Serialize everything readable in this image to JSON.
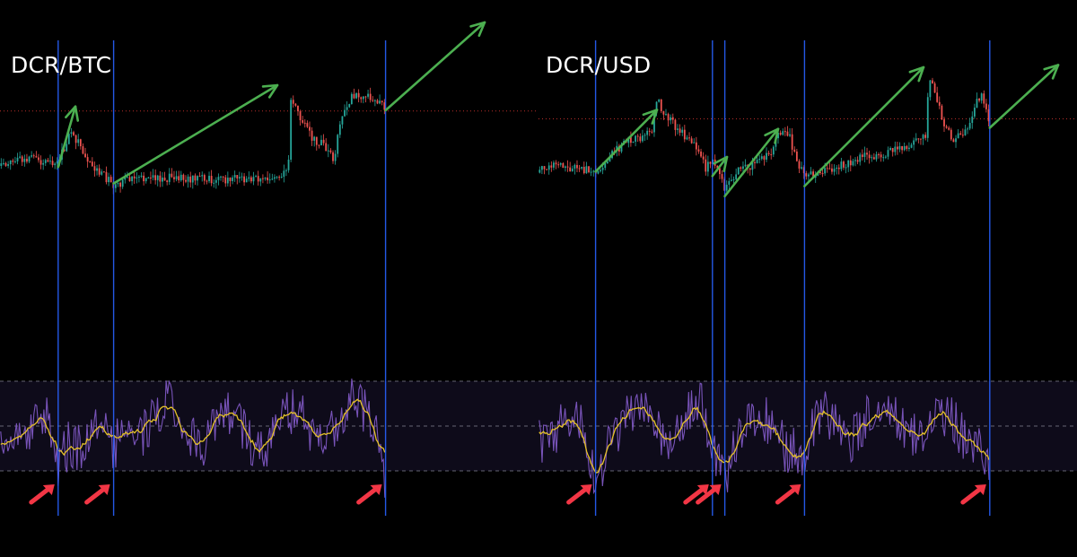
{
  "colors": {
    "background": "#000000",
    "candle_up": "#26a69a",
    "candle_down": "#ef5350",
    "vertical_marker": "#2962ff",
    "trend_arrow": "#4caf50",
    "signal_arrow": "#f23645",
    "oscillator_line": "#7e57c2",
    "oscillator_signal": "#e6c229",
    "oscillator_band": "#1a1430",
    "price_level": "#e53935"
  },
  "chart_data": [
    {
      "type": "candlestick_with_oscillator",
      "title": "DCR/BTC",
      "xlabel": "",
      "ylabel": "",
      "grid": false,
      "vertical_markers_x": [
        0.108,
        0.211,
        0.716
      ],
      "price_path": [
        [
          0.0,
          0.36
        ],
        [
          0.03,
          0.34
        ],
        [
          0.06,
          0.33
        ],
        [
          0.09,
          0.355
        ],
        [
          0.108,
          0.345
        ],
        [
          0.13,
          0.22
        ],
        [
          0.15,
          0.27
        ],
        [
          0.17,
          0.36
        ],
        [
          0.2,
          0.42
        ],
        [
          0.211,
          0.445
        ],
        [
          0.23,
          0.43
        ],
        [
          0.26,
          0.42
        ],
        [
          0.3,
          0.41
        ],
        [
          0.35,
          0.42
        ],
        [
          0.4,
          0.42
        ],
        [
          0.45,
          0.415
        ],
        [
          0.5,
          0.41
        ],
        [
          0.52,
          0.4
        ],
        [
          0.535,
          0.39
        ],
        [
          0.54,
          0.06
        ],
        [
          0.56,
          0.15
        ],
        [
          0.58,
          0.24
        ],
        [
          0.6,
          0.26
        ],
        [
          0.62,
          0.33
        ],
        [
          0.63,
          0.18
        ],
        [
          0.65,
          0.06
        ],
        [
          0.67,
          0.05
        ],
        [
          0.68,
          0.04
        ],
        [
          0.7,
          0.07
        ],
        [
          0.716,
          0.11
        ]
      ],
      "price_level": 0.115,
      "oscillator_band": [
        0.25,
        0.75
      ],
      "oscillator_midline": 0.5,
      "trend_arrows": [
        {
          "from": [
            0.108,
            0.365
          ],
          "to": [
            0.14,
            0.095
          ]
        },
        {
          "from": [
            0.211,
            0.438
          ],
          "to": [
            0.515,
            0.0
          ]
        },
        {
          "from": [
            0.716,
            0.112
          ],
          "to": [
            0.9,
            -0.28
          ]
        }
      ],
      "signal_arrows_x": [
        0.108,
        0.211,
        0.716
      ]
    },
    {
      "type": "candlestick_with_oscillator",
      "title": "DCR/USD",
      "xlabel": "",
      "ylabel": "",
      "grid": false,
      "vertical_markers_x": [
        0.106,
        0.323,
        0.346,
        0.494,
        0.838
      ],
      "price_path": [
        [
          0.0,
          0.39
        ],
        [
          0.03,
          0.34
        ],
        [
          0.06,
          0.37
        ],
        [
          0.09,
          0.38
        ],
        [
          0.106,
          0.4
        ],
        [
          0.13,
          0.33
        ],
        [
          0.16,
          0.25
        ],
        [
          0.19,
          0.23
        ],
        [
          0.21,
          0.21
        ],
        [
          0.22,
          0.06
        ],
        [
          0.235,
          0.13
        ],
        [
          0.26,
          0.2
        ],
        [
          0.29,
          0.27
        ],
        [
          0.31,
          0.37
        ],
        [
          0.323,
          0.33
        ],
        [
          0.335,
          0.39
        ],
        [
          0.346,
          0.47
        ],
        [
          0.37,
          0.38
        ],
        [
          0.4,
          0.36
        ],
        [
          0.43,
          0.31
        ],
        [
          0.45,
          0.2
        ],
        [
          0.46,
          0.19
        ],
        [
          0.48,
          0.33
        ],
        [
          0.494,
          0.42
        ],
        [
          0.52,
          0.38
        ],
        [
          0.55,
          0.37
        ],
        [
          0.6,
          0.32
        ],
        [
          0.65,
          0.3
        ],
        [
          0.7,
          0.25
        ],
        [
          0.72,
          0.22
        ],
        [
          0.725,
          -0.06
        ],
        [
          0.735,
          0.02
        ],
        [
          0.75,
          0.16
        ],
        [
          0.77,
          0.25
        ],
        [
          0.8,
          0.18
        ],
        [
          0.81,
          0.1
        ],
        [
          0.82,
          0.04
        ],
        [
          0.83,
          0.09
        ],
        [
          0.838,
          0.185
        ]
      ],
      "price_level": 0.15,
      "oscillator_band": [
        0.25,
        0.75
      ],
      "oscillator_midline": 0.5,
      "trend_arrows": [
        {
          "from": [
            0.106,
            0.385
          ],
          "to": [
            0.22,
            0.11
          ]
        },
        {
          "from": [
            0.323,
            0.405
          ],
          "to": [
            0.35,
            0.32
          ]
        },
        {
          "from": [
            0.346,
            0.495
          ],
          "to": [
            0.445,
            0.195
          ]
        },
        {
          "from": [
            0.494,
            0.45
          ],
          "to": [
            0.715,
            -0.08
          ]
        },
        {
          "from": [
            0.838,
            0.19
          ],
          "to": [
            0.965,
            -0.09
          ]
        }
      ],
      "signal_arrows_x": [
        0.106,
        0.323,
        0.346,
        0.494,
        0.838
      ]
    }
  ]
}
